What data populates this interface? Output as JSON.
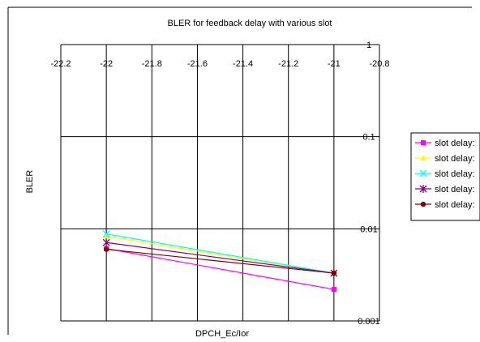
{
  "chart_data": {
    "type": "line",
    "title": "BLER for feedback delay with various slot",
    "xlabel": "DPCH_Ec/Ior",
    "ylabel": "BLER",
    "x_ticks": [
      "-22.2",
      "-22",
      "-21.8",
      "-21.6",
      "-21.4",
      "-21.2",
      "-21",
      "-20.8"
    ],
    "y_ticks": [
      "1",
      "0.1",
      "0.01",
      "0.001"
    ],
    "xlim": [
      -22.2,
      -20.8
    ],
    "ylim": [
      0.001,
      1
    ],
    "yscale": "log",
    "grid": true,
    "legend_position": "right",
    "series": [
      {
        "name": "slot delay:",
        "color": "#ff00ff",
        "marker": "square",
        "x": [
          -22,
          -21
        ],
        "y": [
          0.0061,
          0.0022
        ]
      },
      {
        "name": "slot delay:",
        "color": "#ffff00",
        "marker": "triangle",
        "x": [
          -22,
          -21
        ],
        "y": [
          0.0083,
          0.0033
        ]
      },
      {
        "name": "slot delay:",
        "color": "#00ffff",
        "marker": "x",
        "x": [
          -22,
          -21
        ],
        "y": [
          0.0088,
          0.0033
        ]
      },
      {
        "name": "slot delay:",
        "color": "#800080",
        "marker": "star",
        "x": [
          -22,
          -21
        ],
        "y": [
          0.0071,
          0.0033
        ]
      },
      {
        "name": "slot delay:",
        "color": "#800000",
        "marker": "circle",
        "x": [
          -22,
          -21
        ],
        "y": [
          0.006,
          0.0033
        ]
      }
    ]
  }
}
